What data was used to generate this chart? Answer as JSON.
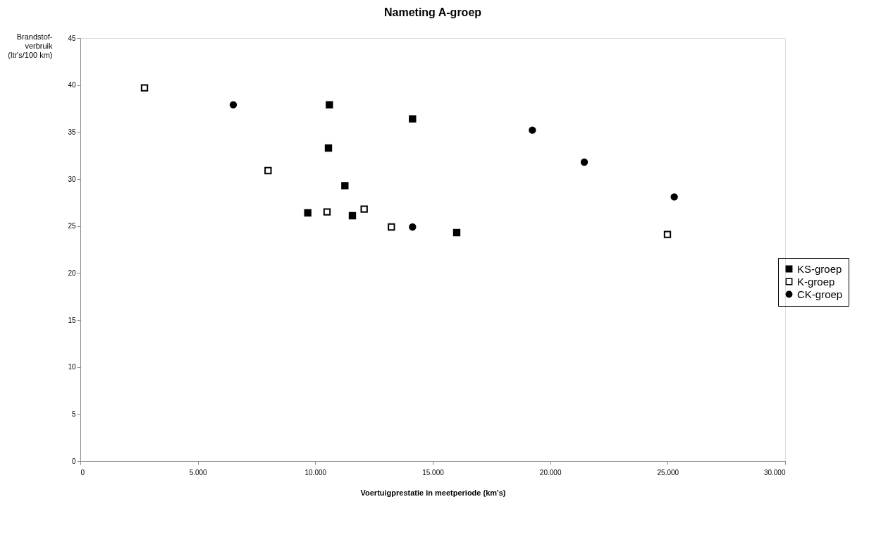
{
  "chart_data": {
    "type": "scatter",
    "title": "Nameting A-groep",
    "xlabel": "Voertuigprestatie in meetperiode (km's)",
    "ylabel": "Brandstof-\nverbruik\n(ltr's/100 km)",
    "xlim": [
      0,
      30000
    ],
    "ylim": [
      0,
      45
    ],
    "xticks": [
      0,
      {
        "value": 5000,
        "label": "5.000"
      },
      {
        "value": 10000,
        "label": "10.000"
      },
      {
        "value": 15000,
        "label": "15.000"
      },
      {
        "value": 20000,
        "label": "20.000"
      },
      {
        "value": 25000,
        "label": "25.000"
      },
      {
        "value": 30000,
        "label": "30.000"
      }
    ],
    "yticks": [
      0,
      5,
      10,
      15,
      20,
      25,
      30,
      35,
      40,
      45
    ],
    "grid": false,
    "legend": "right",
    "series": [
      {
        "name": "KS-groep",
        "color": "#000000",
        "marker": "square",
        "x": [
          10600,
          10560,
          11260,
          9680,
          11580,
          14140,
          16020
        ],
        "values": [
          37.9,
          33.3,
          29.3,
          26.4,
          26.1,
          36.4,
          24.3
        ]
      },
      {
        "name": "K-groep",
        "color": "#ffffff",
        "marker": "square",
        "x": [
          2730,
          7990,
          10500,
          12080,
          13240,
          24990
        ],
        "values": [
          39.7,
          30.9,
          26.5,
          26.8,
          24.9,
          24.1
        ]
      },
      {
        "name": "CK-groep",
        "color": "#000000",
        "marker": "circle",
        "x": [
          6510,
          14140,
          19240,
          21450,
          25280
        ],
        "values": [
          37.9,
          24.9,
          35.2,
          31.8,
          28.1
        ]
      }
    ]
  }
}
